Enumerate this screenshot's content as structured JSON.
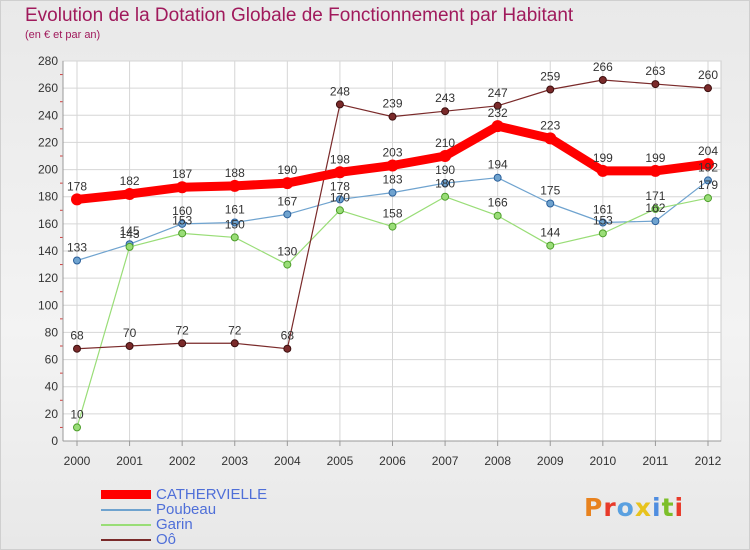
{
  "title": "Evolution de la Dotation Globale de Fonctionnement par Habitant",
  "subtitle": "(en € et par an)",
  "logo": {
    "text": "Proxiti",
    "colors": [
      "#e8821e",
      "#e83a2a",
      "#5aa0e0",
      "#e8c31e",
      "#4f8de0",
      "#7dbf2a",
      "#e83a2a"
    ]
  },
  "chart_data": {
    "type": "line",
    "x": [
      "2000",
      "2001",
      "2002",
      "2003",
      "2004",
      "2005",
      "2006",
      "2007",
      "2008",
      "2009",
      "2010",
      "2011",
      "2012"
    ],
    "ylim": [
      0,
      280
    ],
    "yticks": [
      0,
      20,
      40,
      60,
      80,
      100,
      120,
      140,
      160,
      180,
      200,
      220,
      240,
      260,
      280
    ],
    "grid": true,
    "legend_position": "bottom-left",
    "series": [
      {
        "name": "CATHERVIELLE",
        "color": "#ff0000",
        "values": [
          178,
          182,
          187,
          188,
          190,
          198,
          203,
          210,
          232,
          223,
          199,
          199,
          204
        ]
      },
      {
        "name": "Poubeau",
        "color": "#6fa3cf",
        "values": [
          133,
          145,
          160,
          161,
          167,
          178,
          183,
          190,
          194,
          175,
          161,
          162,
          192
        ]
      },
      {
        "name": "Garin",
        "color": "#99dd77",
        "values": [
          10,
          143,
          153,
          150,
          130,
          170,
          158,
          180,
          166,
          144,
          153,
          171,
          179
        ]
      },
      {
        "name": "Oô",
        "color": "#7a2a2a",
        "values": [
          68,
          70,
          72,
          72,
          68,
          248,
          239,
          243,
          247,
          259,
          266,
          263,
          260
        ]
      }
    ]
  }
}
